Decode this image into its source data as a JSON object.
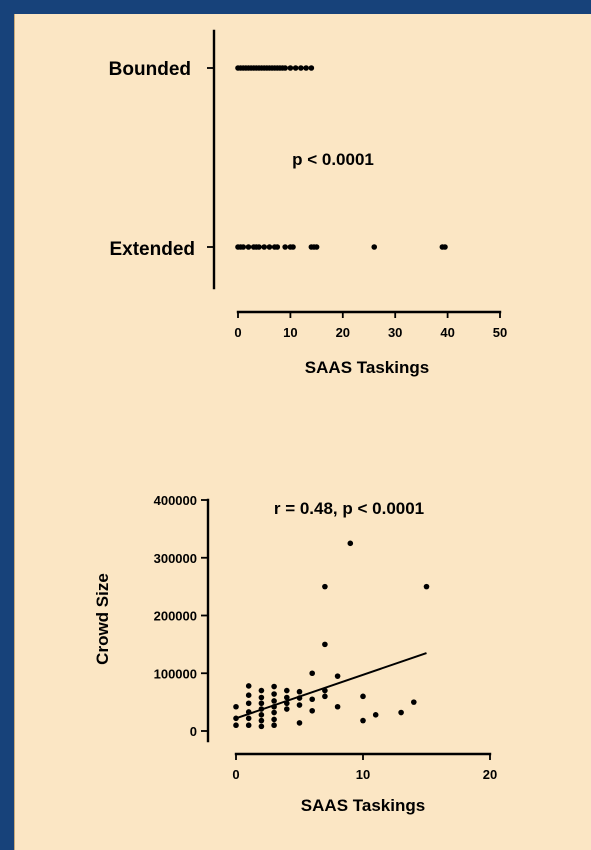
{
  "chart_data": [
    {
      "type": "scatter",
      "subtype": "strip",
      "xlabel": "SAAS Taskings",
      "ylabel": "",
      "xlim": [
        0,
        50
      ],
      "xticks": [
        0,
        10,
        20,
        30,
        40,
        50
      ],
      "xtick_labels": [
        "0",
        "10",
        "20",
        "30",
        "40",
        "50"
      ],
      "categories": [
        "Bounded",
        "Extended"
      ],
      "series": [
        {
          "category": "Bounded",
          "values": [
            0,
            0.5,
            1,
            1.5,
            2,
            2.5,
            3,
            3.5,
            4,
            4.5,
            5,
            5.5,
            6,
            6.5,
            7,
            7.5,
            8,
            8.5,
            9,
            10,
            11,
            12,
            13,
            14
          ]
        },
        {
          "category": "Extended",
          "values": [
            0,
            0.5,
            1,
            2,
            3,
            3.5,
            4,
            5,
            6,
            7,
            7.5,
            9,
            10,
            10.5,
            14,
            14.5,
            15,
            26,
            39,
            39.5
          ]
        }
      ],
      "annotations": [
        "p < 0.0001"
      ],
      "grid": false
    },
    {
      "type": "scatter",
      "xlabel": "SAAS Taskings",
      "ylabel": "Crowd Size",
      "xlim": [
        0,
        20
      ],
      "ylim": [
        0,
        400000
      ],
      "xticks": [
        0,
        10,
        20
      ],
      "xtick_labels": [
        "0",
        "10",
        "20"
      ],
      "yticks": [
        0,
        100000,
        200000,
        300000,
        400000
      ],
      "ytick_labels": [
        "0",
        "100000",
        "200000",
        "300000",
        "400000"
      ],
      "points": [
        {
          "x": 0,
          "y": 10000
        },
        {
          "x": 0,
          "y": 22000
        },
        {
          "x": 0,
          "y": 42000
        },
        {
          "x": 1,
          "y": 10000
        },
        {
          "x": 1,
          "y": 22000
        },
        {
          "x": 1,
          "y": 33000
        },
        {
          "x": 1,
          "y": 48000
        },
        {
          "x": 1,
          "y": 62000
        },
        {
          "x": 1,
          "y": 78000
        },
        {
          "x": 2,
          "y": 8000
        },
        {
          "x": 2,
          "y": 18000
        },
        {
          "x": 2,
          "y": 28000
        },
        {
          "x": 2,
          "y": 38000
        },
        {
          "x": 2,
          "y": 48000
        },
        {
          "x": 2,
          "y": 58000
        },
        {
          "x": 2,
          "y": 70000
        },
        {
          "x": 3,
          "y": 10000
        },
        {
          "x": 3,
          "y": 20000
        },
        {
          "x": 3,
          "y": 32000
        },
        {
          "x": 3,
          "y": 42000
        },
        {
          "x": 3,
          "y": 52000
        },
        {
          "x": 3,
          "y": 64000
        },
        {
          "x": 3,
          "y": 77000
        },
        {
          "x": 4,
          "y": 38000
        },
        {
          "x": 4,
          "y": 48000
        },
        {
          "x": 4,
          "y": 58000
        },
        {
          "x": 4,
          "y": 70000
        },
        {
          "x": 5,
          "y": 14000
        },
        {
          "x": 5,
          "y": 45000
        },
        {
          "x": 5,
          "y": 57000
        },
        {
          "x": 5,
          "y": 68000
        },
        {
          "x": 6,
          "y": 35000
        },
        {
          "x": 6,
          "y": 55000
        },
        {
          "x": 6,
          "y": 100000
        },
        {
          "x": 7,
          "y": 60000
        },
        {
          "x": 7,
          "y": 70000
        },
        {
          "x": 7,
          "y": 150000
        },
        {
          "x": 7,
          "y": 250000
        },
        {
          "x": 8,
          "y": 42000
        },
        {
          "x": 8,
          "y": 95000
        },
        {
          "x": 9,
          "y": 325000
        },
        {
          "x": 10,
          "y": 18000
        },
        {
          "x": 10,
          "y": 60000
        },
        {
          "x": 11,
          "y": 28000
        },
        {
          "x": 13,
          "y": 32000
        },
        {
          "x": 14,
          "y": 50000
        },
        {
          "x": 15,
          "y": 250000
        }
      ],
      "trendline": {
        "x": [
          0,
          15
        ],
        "y": [
          22000,
          135000
        ]
      },
      "annotations": [
        "r = 0.48, p < 0.0001"
      ],
      "grid": false
    }
  ]
}
